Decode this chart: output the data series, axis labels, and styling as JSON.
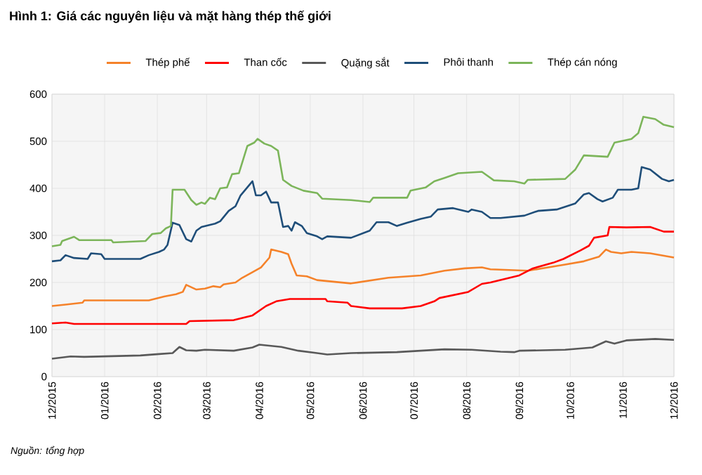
{
  "chart_data": {
    "type": "line",
    "title": "Hình 1: Giá các nguyên liệu và mặt hàng thép thế giới",
    "annotations": [
      "Nguồn: tổng hợp"
    ],
    "xlim": [
      "2015-12-01",
      "2016-12-01"
    ],
    "xticks": [
      {
        "value": "2015-12-01",
        "label": "12/2015"
      },
      {
        "value": "2016-01-01",
        "label": "01/2016"
      },
      {
        "value": "2016-02-01",
        "label": "02/2016"
      },
      {
        "value": "2016-03-01",
        "label": "03/2016"
      },
      {
        "value": "2016-04-01",
        "label": "04/2016"
      },
      {
        "value": "2016-05-01",
        "label": "05/2016"
      },
      {
        "value": "2016-06-01",
        "label": "06/2016"
      },
      {
        "value": "2016-07-01",
        "label": "07/2016"
      },
      {
        "value": "2016-08-01",
        "label": "08/2016"
      },
      {
        "value": "2016-09-01",
        "label": "09/2016"
      },
      {
        "value": "2016-10-01",
        "label": "10/2016"
      },
      {
        "value": "2016-11-01",
        "label": "11/2016"
      },
      {
        "value": "2016-12-01",
        "label": "12/2016"
      }
    ],
    "ylim": [
      0,
      600
    ],
    "yticks": [
      0,
      100,
      200,
      300,
      400,
      500,
      600
    ],
    "grid": true,
    "legend": "top",
    "marker": "none",
    "line_style": "solid",
    "series": [
      {
        "name": "Thép phế",
        "color": "#f5822a",
        "x": [
          "2015-12-01",
          "2015-12-09",
          "2015-12-19",
          "2015-12-20",
          "2016-01-27",
          "2016-02-05",
          "2016-02-12",
          "2016-02-16",
          "2016-02-18",
          "2016-02-24",
          "2016-02-29",
          "2016-03-05",
          "2016-03-09",
          "2016-03-11",
          "2016-03-18",
          "2016-03-22",
          "2016-03-28",
          "2016-04-02",
          "2016-04-07",
          "2016-04-08",
          "2016-04-14",
          "2016-04-18",
          "2016-04-20",
          "2016-04-23",
          "2016-04-29",
          "2016-05-05",
          "2016-05-25",
          "2016-06-16",
          "2016-07-05",
          "2016-07-19",
          "2016-07-31",
          "2016-08-10",
          "2016-08-15",
          "2016-09-06",
          "2016-09-28",
          "2016-10-09",
          "2016-10-18",
          "2016-10-22",
          "2016-10-25",
          "2016-10-31",
          "2016-11-06",
          "2016-11-17",
          "2016-12-01"
        ],
        "values": [
          150,
          153,
          157,
          162,
          162,
          170,
          175,
          180,
          195,
          185,
          187,
          192,
          190,
          196,
          200,
          210,
          222,
          232,
          253,
          270,
          265,
          260,
          240,
          215,
          213,
          205,
          198,
          210,
          215,
          225,
          230,
          232,
          228,
          225,
          238,
          245,
          255,
          270,
          265,
          262,
          265,
          262,
          253
        ]
      },
      {
        "name": "Than cốc",
        "color": "#ff0000",
        "x": [
          "2015-12-01",
          "2015-12-09",
          "2015-12-14",
          "2016-02-18",
          "2016-02-20",
          "2016-03-17",
          "2016-03-28",
          "2016-04-05",
          "2016-04-11",
          "2016-04-19",
          "2016-05-10",
          "2016-05-11",
          "2016-05-23",
          "2016-05-25",
          "2016-06-05",
          "2016-06-24",
          "2016-07-05",
          "2016-07-13",
          "2016-07-16",
          "2016-08-02",
          "2016-08-10",
          "2016-08-15",
          "2016-09-01",
          "2016-09-09",
          "2016-09-21",
          "2016-09-27",
          "2016-10-07",
          "2016-10-12",
          "2016-10-15",
          "2016-10-23",
          "2016-10-24",
          "2016-11-03",
          "2016-11-17",
          "2016-11-25",
          "2016-12-01"
        ],
        "values": [
          113,
          115,
          112,
          112,
          118,
          120,
          130,
          150,
          160,
          165,
          165,
          160,
          157,
          150,
          145,
          145,
          150,
          160,
          167,
          180,
          197,
          200,
          215,
          230,
          242,
          250,
          268,
          278,
          295,
          300,
          318,
          317,
          318,
          308,
          308
        ]
      },
      {
        "name": "Quặng sắt",
        "color": "#595959",
        "x": [
          "2015-12-01",
          "2015-12-12",
          "2015-12-20",
          "2016-01-22",
          "2016-02-02",
          "2016-02-10",
          "2016-02-14",
          "2016-02-18",
          "2016-02-24",
          "2016-02-29",
          "2016-03-17",
          "2016-03-28",
          "2016-04-01",
          "2016-04-14",
          "2016-04-24",
          "2016-05-05",
          "2016-05-11",
          "2016-05-25",
          "2016-06-21",
          "2016-07-19",
          "2016-08-04",
          "2016-08-21",
          "2016-08-29",
          "2016-09-01",
          "2016-09-28",
          "2016-10-14",
          "2016-10-22",
          "2016-10-27",
          "2016-11-03",
          "2016-11-20",
          "2016-12-01"
        ],
        "values": [
          38,
          43,
          42,
          45,
          48,
          50,
          63,
          56,
          55,
          57,
          55,
          62,
          68,
          63,
          55,
          50,
          47,
          50,
          52,
          58,
          57,
          53,
          52,
          55,
          57,
          62,
          75,
          70,
          77,
          80,
          78
        ]
      },
      {
        "name": "Phôi thanh",
        "color": "#1f4e79",
        "x": [
          "2015-12-01",
          "2015-12-06",
          "2015-12-09",
          "2015-12-14",
          "2015-12-22",
          "2015-12-24",
          "2015-12-30",
          "2016-01-01",
          "2016-01-22",
          "2016-01-27",
          "2016-02-02",
          "2016-02-05",
          "2016-02-07",
          "2016-02-10",
          "2016-02-14",
          "2016-02-18",
          "2016-02-21",
          "2016-02-24",
          "2016-02-27",
          "2016-03-06",
          "2016-03-09",
          "2016-03-14",
          "2016-03-18",
          "2016-03-21",
          "2016-03-28",
          "2016-03-30",
          "2016-04-02",
          "2016-04-05",
          "2016-04-08",
          "2016-04-12",
          "2016-04-15",
          "2016-04-18",
          "2016-04-20",
          "2016-04-22",
          "2016-04-26",
          "2016-04-29",
          "2016-05-05",
          "2016-05-08",
          "2016-05-11",
          "2016-05-25",
          "2016-06-05",
          "2016-06-09",
          "2016-06-16",
          "2016-06-21",
          "2016-06-27",
          "2016-07-05",
          "2016-07-11",
          "2016-07-15",
          "2016-07-24",
          "2016-08-02",
          "2016-08-04",
          "2016-08-10",
          "2016-08-15",
          "2016-08-21",
          "2016-09-04",
          "2016-09-12",
          "2016-09-23",
          "2016-10-04",
          "2016-10-09",
          "2016-10-12",
          "2016-10-17",
          "2016-10-20",
          "2016-10-26",
          "2016-10-29",
          "2016-11-06",
          "2016-11-10",
          "2016-11-12",
          "2016-11-17",
          "2016-11-24",
          "2016-11-28",
          "2016-12-01"
        ],
        "values": [
          245,
          247,
          258,
          252,
          250,
          262,
          260,
          250,
          250,
          258,
          265,
          270,
          280,
          327,
          322,
          292,
          287,
          310,
          318,
          325,
          330,
          352,
          362,
          385,
          415,
          385,
          385,
          393,
          370,
          370,
          318,
          320,
          310,
          328,
          320,
          305,
          298,
          292,
          298,
          295,
          310,
          328,
          328,
          320,
          327,
          335,
          340,
          355,
          358,
          350,
          355,
          350,
          337,
          337,
          342,
          352,
          355,
          368,
          387,
          390,
          377,
          372,
          380,
          397,
          397,
          400,
          445,
          440,
          420,
          415,
          418
        ]
      },
      {
        "name": "Thép cán nóng",
        "color": "#7cb55a",
        "x": [
          "2015-12-01",
          "2015-12-06",
          "2015-12-07",
          "2015-12-14",
          "2015-12-17",
          "2016-01-05",
          "2016-01-06",
          "2016-01-25",
          "2016-01-29",
          "2016-02-03",
          "2016-02-06",
          "2016-02-09",
          "2016-02-10",
          "2016-02-17",
          "2016-02-21",
          "2016-02-24",
          "2016-02-27",
          "2016-02-29",
          "2016-03-03",
          "2016-03-06",
          "2016-03-09",
          "2016-03-13",
          "2016-03-16",
          "2016-03-20",
          "2016-03-22",
          "2016-03-25",
          "2016-03-29",
          "2016-03-31",
          "2016-04-04",
          "2016-04-08",
          "2016-04-12",
          "2016-04-15",
          "2016-04-20",
          "2016-04-27",
          "2016-05-05",
          "2016-05-08",
          "2016-05-25",
          "2016-06-05",
          "2016-06-07",
          "2016-06-27",
          "2016-06-29",
          "2016-07-08",
          "2016-07-13",
          "2016-07-19",
          "2016-07-27",
          "2016-08-10",
          "2016-08-17",
          "2016-08-29",
          "2016-09-04",
          "2016-09-06",
          "2016-09-28",
          "2016-10-04",
          "2016-10-09",
          "2016-10-23",
          "2016-10-27",
          "2016-11-06",
          "2016-11-10",
          "2016-11-13",
          "2016-11-20",
          "2016-11-25",
          "2016-12-01"
        ],
        "values": [
          277,
          280,
          288,
          297,
          290,
          290,
          285,
          288,
          303,
          305,
          315,
          320,
          397,
          397,
          375,
          365,
          370,
          367,
          380,
          377,
          400,
          402,
          430,
          432,
          455,
          490,
          497,
          505,
          495,
          490,
          480,
          418,
          405,
          395,
          390,
          378,
          375,
          371,
          380,
          380,
          395,
          402,
          415,
          422,
          432,
          435,
          417,
          415,
          410,
          418,
          420,
          440,
          470,
          467,
          497,
          505,
          517,
          552,
          547,
          535,
          530
        ]
      }
    ]
  }
}
